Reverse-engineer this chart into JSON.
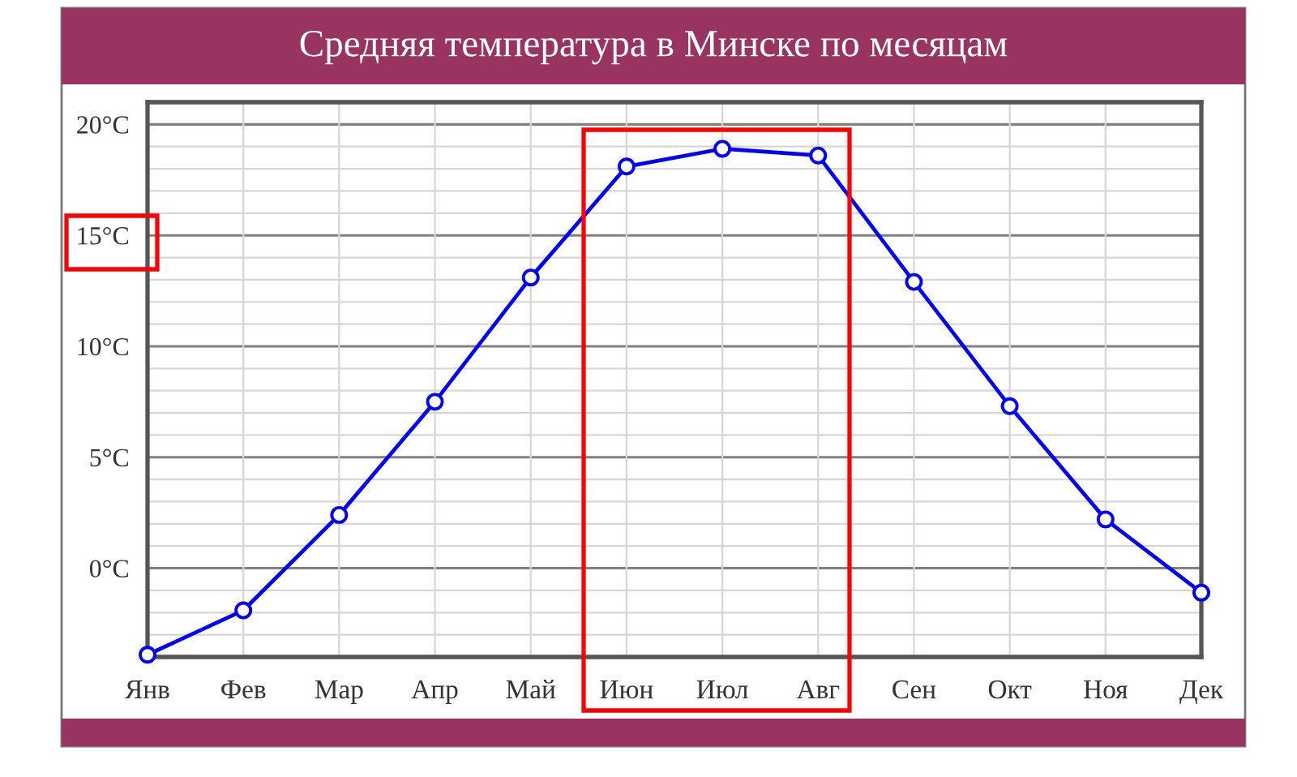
{
  "chart_data": {
    "type": "line",
    "title": "Средняя температура в Минске по месяцам",
    "categories": [
      "Янв",
      "Фев",
      "Мар",
      "Апр",
      "Май",
      "Июн",
      "Июл",
      "Авг",
      "Сен",
      "Окт",
      "Ноя",
      "Дек"
    ],
    "series": [
      {
        "color": "#0000ff",
        "values": [
          -3.9,
          -1.9,
          2.4,
          7.5,
          13.1,
          18.1,
          18.9,
          18.6,
          12.9,
          7.3,
          2.2,
          -1.1
        ]
      }
    ],
    "ylim": [
      -4,
      21
    ],
    "yticks": [
      {
        "value": -3,
        "label": null
      },
      {
        "value": -2,
        "label": null
      },
      {
        "value": -1,
        "label": null
      },
      {
        "value": 0,
        "label": "0°C"
      },
      {
        "value": 1,
        "label": null
      },
      {
        "value": 2,
        "label": null
      },
      {
        "value": 3,
        "label": null
      },
      {
        "value": 4,
        "label": null
      },
      {
        "value": 5,
        "label": "5°C"
      },
      {
        "value": 6,
        "label": null
      },
      {
        "value": 7,
        "label": null
      },
      {
        "value": 8,
        "label": null
      },
      {
        "value": 9,
        "label": null
      },
      {
        "value": 10,
        "label": "10°C"
      },
      {
        "value": 11,
        "label": null
      },
      {
        "value": 12,
        "label": null
      },
      {
        "value": 13,
        "label": null
      },
      {
        "value": 14,
        "label": null
      },
      {
        "value": 15,
        "label": "15°C"
      },
      {
        "value": 16,
        "label": null
      },
      {
        "value": 17,
        "label": null
      },
      {
        "value": 18,
        "label": null
      },
      {
        "value": 19,
        "label": null
      },
      {
        "value": 20,
        "label": "20°C"
      }
    ],
    "grid": true,
    "marker": "circle",
    "line_style": "solid"
  }
}
